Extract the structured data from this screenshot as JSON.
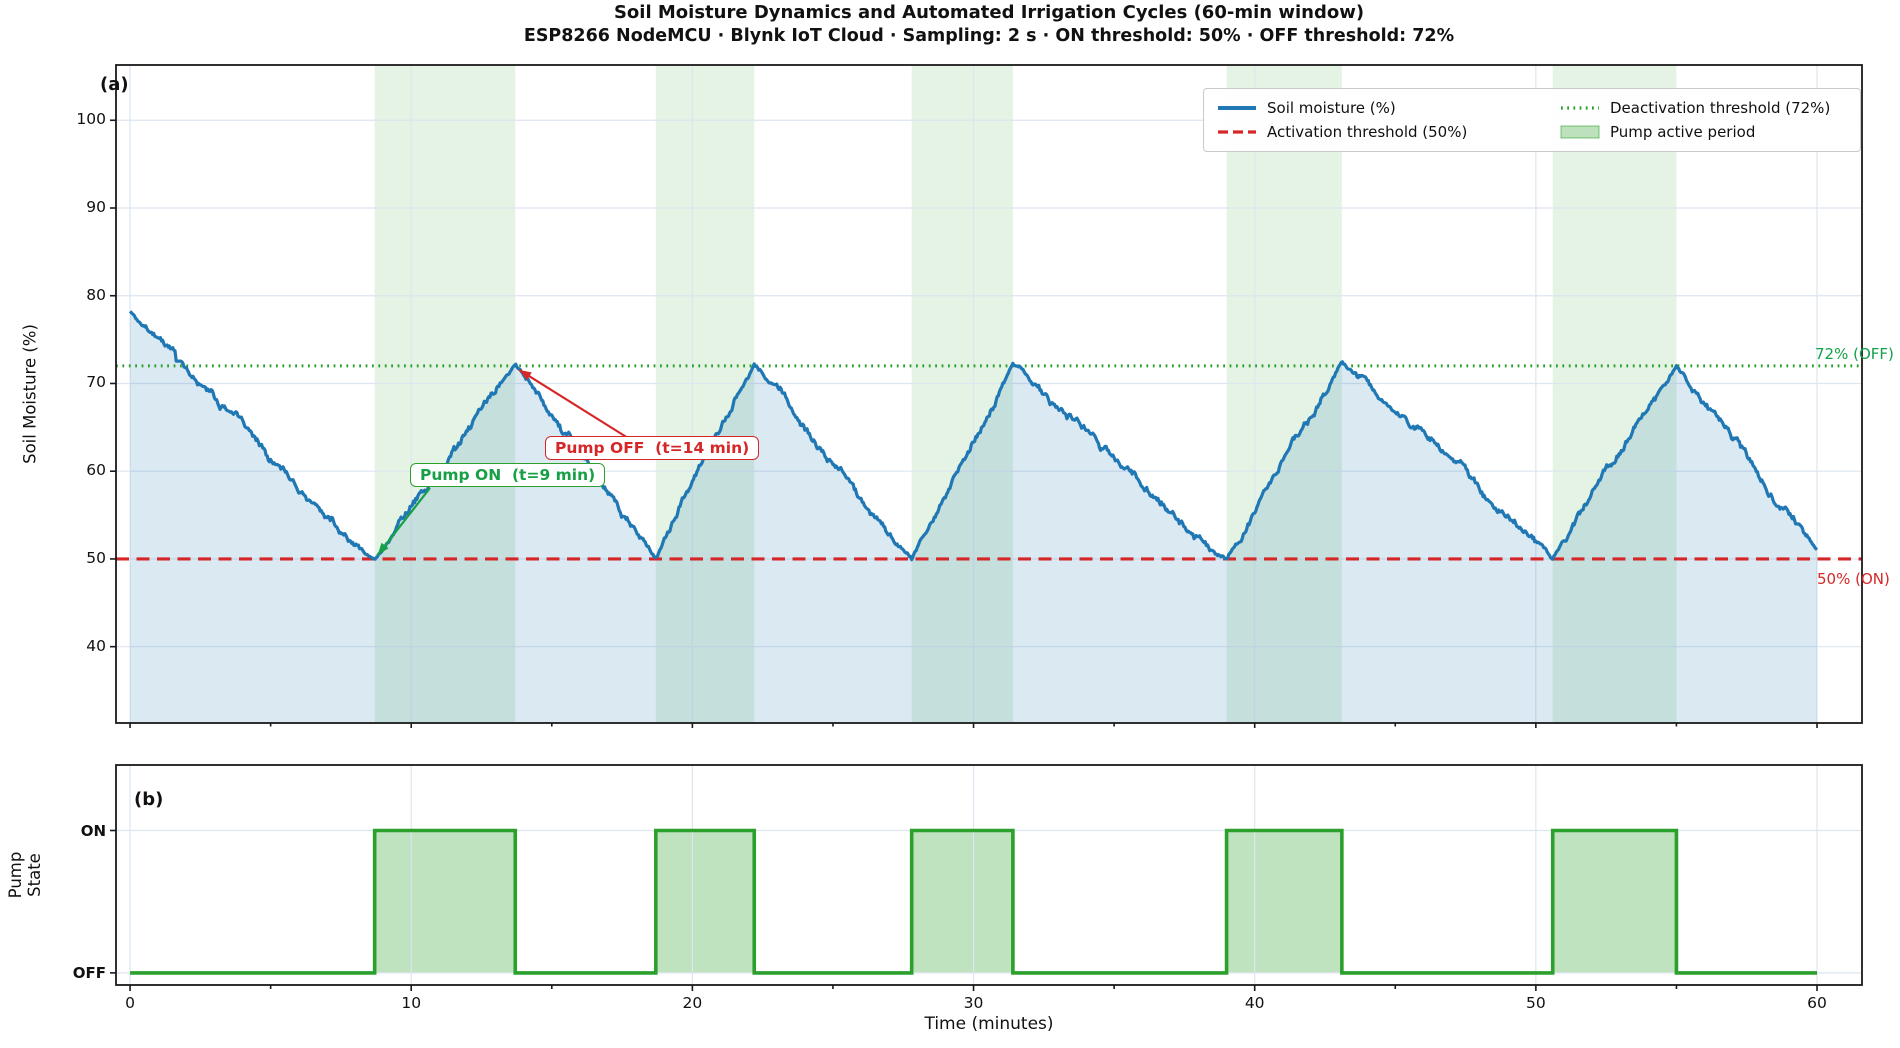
{
  "header": {
    "title": "Soil Moisture Dynamics and Automated Irrigation Cycles (60-min window)",
    "subtitle": "ESP8266 NodeMCU · Blynk IoT Cloud · Sampling: 2 s · ON threshold: 50% · OFF threshold: 72%"
  },
  "panel_a": {
    "letter": "(a)",
    "ylabel": "Soil Moisture (%)",
    "yticks": [
      40,
      50,
      60,
      70,
      80,
      90,
      100
    ],
    "right_label_off": "72% (OFF)",
    "right_label_on": "50% (ON)"
  },
  "panel_b": {
    "letter": "(b)",
    "ylabel_lines": [
      "Pump",
      "State"
    ],
    "yticks": [
      "ON",
      "OFF"
    ]
  },
  "xaxis": {
    "label": "Time (minutes)",
    "ticks": [
      0,
      10,
      20,
      30,
      40,
      50,
      60
    ]
  },
  "legend": {
    "items": [
      {
        "label": "Soil moisture (%)",
        "swatch": "solid-blue"
      },
      {
        "label": "Activation threshold (50%)",
        "swatch": "dashed-red"
      },
      {
        "label": "Deactivation threshold (72%)",
        "swatch": "dotted-green"
      },
      {
        "label": "Pump active period",
        "swatch": "patch-green"
      }
    ]
  },
  "annotations": {
    "pump_on": {
      "text": "Pump ON  (t=9 min)",
      "target_t_min": 8.7,
      "target_value_pct": 50
    },
    "pump_off": {
      "text": "Pump OFF  (t=14 min)",
      "target_t_min": 13.7,
      "target_value_pct": 72
    }
  },
  "colors": {
    "soil_line": "#1f77b4",
    "soil_fill": "rgba(31,119,180,0.16)",
    "activation_red": "#d62728",
    "deactivation_green": "#2ca02c",
    "pump_line": "#2ca02c",
    "pump_fill": "rgba(44,160,44,0.30)",
    "band_fill": "rgba(44,160,44,0.13)",
    "grid": "#dde5f0",
    "spine": "#1a1a1a"
  },
  "chart_data": [
    {
      "type": "line",
      "panel": "(a)",
      "title": "Soil moisture with irrigation thresholds",
      "xlabel": "Time (minutes)",
      "ylabel": "Soil Moisture (%)",
      "xlim": [
        -0.5,
        61.6
      ],
      "ylim": [
        31.3,
        106.3
      ],
      "xticks": [
        0,
        10,
        20,
        30,
        40,
        50,
        60
      ],
      "yticks": [
        40,
        50,
        60,
        70,
        80,
        90,
        100
      ],
      "grid": true,
      "legend_position": "upper right",
      "series": [
        {
          "name": "Soil moisture (%)",
          "style": "noisy sawtooth",
          "breakpoints": [
            [
              0,
              78.2
            ],
            [
              8.7,
              50
            ],
            [
              13.7,
              72.2
            ],
            [
              18.7,
              50
            ],
            [
              22.2,
              72.1
            ],
            [
              27.8,
              50
            ],
            [
              31.4,
              72.2
            ],
            [
              39.0,
              50
            ],
            [
              43.1,
              72.5
            ],
            [
              50.6,
              50
            ],
            [
              55.0,
              72.1
            ],
            [
              60.0,
              51.0
            ]
          ]
        }
      ],
      "thresholds": {
        "activation_on_pct": 50,
        "deactivation_off_pct": 72
      },
      "pump_active_periods_min": [
        [
          8.7,
          13.7
        ],
        [
          18.7,
          22.2
        ],
        [
          27.8,
          31.4
        ],
        [
          39.0,
          43.1
        ],
        [
          50.6,
          55.0
        ]
      ]
    },
    {
      "type": "area",
      "panel": "(b)",
      "title": "Pump state timeline",
      "ylabel": "Pump State",
      "states": [
        "OFF",
        "ON"
      ],
      "initial_state": "OFF",
      "on_periods_min": [
        [
          8.7,
          13.7
        ],
        [
          18.7,
          22.2
        ],
        [
          27.8,
          31.4
        ],
        [
          39.0,
          43.1
        ],
        [
          50.6,
          55.0
        ]
      ],
      "x_range_min": [
        0,
        60
      ]
    }
  ]
}
